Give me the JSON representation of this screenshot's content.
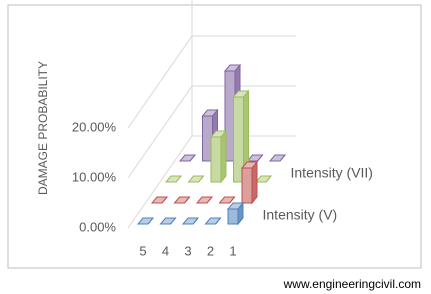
{
  "chart_data": {
    "type": "bar3d",
    "y_label": "DAMAGE PROBABILITY",
    "categories": [
      "5",
      "4",
      "3",
      "2",
      "1"
    ],
    "series": [
      {
        "name": "Intensity (V)",
        "color": "#4f81bd",
        "values": [
          0,
          0,
          0,
          0,
          3
        ]
      },
      {
        "name": null,
        "color": "#c0504d",
        "values": [
          0,
          0,
          0,
          0,
          7
        ]
      },
      {
        "name": "Intensity (VII)",
        "color": "#9bbb59",
        "values": [
          0,
          0,
          9,
          17,
          0
        ]
      },
      {
        "name": null,
        "color": "#8064a2",
        "values": [
          0,
          9,
          18,
          0,
          0
        ]
      }
    ],
    "ylim": [
      0,
      30
    ],
    "yticks": [
      {
        "value": 0,
        "label": "0.00%"
      },
      {
        "value": 10,
        "label": "10.00%"
      },
      {
        "value": 20,
        "label": "20.00%"
      }
    ],
    "grid": true,
    "footer": "www.engineeringcivil.com"
  }
}
